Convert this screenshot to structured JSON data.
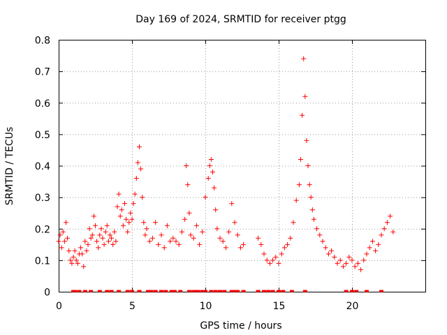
{
  "chart_data": {
    "type": "scatter",
    "title": "Day 169 of 2024, SRMTID for receiver ptgg",
    "xlabel": "GPS time / hours",
    "ylabel": "SRMTID / TECUs",
    "xlim": [
      0,
      25
    ],
    "ylim": [
      0,
      0.8
    ],
    "x_ticks": [
      0,
      5,
      10,
      15,
      20
    ],
    "x_tick_labels": [
      "0",
      "5",
      "10",
      "15",
      "20"
    ],
    "y_ticks": [
      0,
      0.1,
      0.2,
      0.3,
      0.4,
      0.5,
      0.6,
      0.7,
      0.8
    ],
    "y_tick_labels": [
      "0",
      "0.1",
      "0.2",
      "0.3",
      "0.4",
      "0.5",
      "0.6",
      "0.7",
      "0.8"
    ],
    "grid": true,
    "marker": "+",
    "color": "#ff0000",
    "series": [
      {
        "name": "SRMTID",
        "x": [
          0.0,
          0.1,
          0.2,
          0.3,
          0.4,
          0.5,
          0.6,
          0.7,
          0.8,
          0.9,
          1.0,
          1.1,
          1.2,
          1.3,
          1.4,
          1.5,
          1.6,
          1.7,
          1.8,
          1.9,
          2.0,
          2.1,
          2.2,
          2.3,
          2.4,
          2.5,
          2.6,
          2.7,
          2.8,
          2.9,
          3.0,
          3.1,
          3.2,
          3.3,
          3.4,
          3.5,
          3.6,
          3.7,
          3.8,
          3.9,
          4.0,
          4.1,
          4.2,
          4.3,
          4.4,
          4.5,
          4.6,
          4.7,
          4.8,
          4.9,
          5.0,
          5.1,
          5.2,
          5.3,
          5.4,
          5.5,
          5.6,
          5.7,
          5.8,
          5.9,
          6.0,
          6.2,
          6.4,
          6.6,
          6.8,
          7.0,
          7.2,
          7.4,
          7.6,
          7.8,
          8.0,
          8.2,
          8.4,
          8.6,
          8.7,
          8.8,
          8.9,
          9.0,
          9.2,
          9.4,
          9.6,
          9.8,
          10.0,
          10.2,
          10.3,
          10.4,
          10.5,
          10.6,
          10.7,
          10.8,
          11.0,
          11.2,
          11.4,
          11.6,
          11.8,
          12.0,
          12.2,
          12.4,
          12.6,
          13.6,
          13.8,
          14.0,
          14.2,
          14.4,
          14.6,
          14.8,
          15.0,
          15.2,
          15.4,
          15.6,
          15.8,
          16.0,
          16.2,
          16.4,
          16.5,
          16.6,
          16.7,
          16.8,
          16.9,
          17.0,
          17.1,
          17.2,
          17.3,
          17.4,
          17.6,
          17.8,
          18.0,
          18.2,
          18.4,
          18.6,
          18.8,
          19.0,
          19.2,
          19.4,
          19.6,
          19.8,
          20.0,
          20.2,
          20.4,
          20.6,
          20.8,
          21.0,
          21.2,
          21.4,
          21.6,
          21.8,
          22.0,
          22.2,
          22.4,
          22.6,
          22.8
        ],
        "y": [
          0.16,
          0.18,
          0.14,
          0.19,
          0.16,
          0.22,
          0.17,
          0.13,
          0.1,
          0.09,
          0.11,
          0.13,
          0.1,
          0.09,
          0.12,
          0.14,
          0.12,
          0.08,
          0.16,
          0.13,
          0.15,
          0.2,
          0.17,
          0.18,
          0.24,
          0.21,
          0.16,
          0.14,
          0.18,
          0.2,
          0.17,
          0.15,
          0.19,
          0.21,
          0.16,
          0.18,
          0.17,
          0.15,
          0.19,
          0.16,
          0.27,
          0.31,
          0.24,
          0.26,
          0.21,
          0.28,
          0.23,
          0.19,
          0.22,
          0.25,
          0.23,
          0.28,
          0.31,
          0.36,
          0.41,
          0.46,
          0.39,
          0.3,
          0.22,
          0.18,
          0.2,
          0.16,
          0.17,
          0.22,
          0.15,
          0.18,
          0.14,
          0.21,
          0.16,
          0.17,
          0.16,
          0.15,
          0.19,
          0.23,
          0.4,
          0.34,
          0.25,
          0.18,
          0.17,
          0.21,
          0.15,
          0.19,
          0.3,
          0.36,
          0.4,
          0.42,
          0.38,
          0.33,
          0.26,
          0.2,
          0.17,
          0.16,
          0.14,
          0.19,
          0.28,
          0.22,
          0.18,
          0.14,
          0.15,
          0.17,
          0.15,
          0.12,
          0.1,
          0.09,
          0.1,
          0.11,
          0.09,
          0.12,
          0.14,
          0.15,
          0.17,
          0.22,
          0.29,
          0.34,
          0.42,
          0.56,
          0.74,
          0.62,
          0.48,
          0.4,
          0.34,
          0.3,
          0.26,
          0.23,
          0.2,
          0.18,
          0.16,
          0.14,
          0.12,
          0.13,
          0.11,
          0.09,
          0.1,
          0.08,
          0.09,
          0.11,
          0.1,
          0.08,
          0.09,
          0.07,
          0.1,
          0.12,
          0.14,
          0.16,
          0.13,
          0.15,
          0.18,
          0.2,
          0.22,
          0.24,
          0.19
        ]
      }
    ],
    "zero_series": {
      "name": "zero values",
      "x": [
        1.0,
        1.1,
        1.4,
        1.8,
        2.2,
        2.8,
        3.3,
        3.6,
        4.1,
        4.7,
        5.0,
        5.5,
        6.1,
        6.3,
        6.6,
        7.0,
        7.3,
        7.7,
        7.9,
        8.3,
        8.9,
        9.2,
        9.4,
        9.5,
        9.8,
        10.0,
        10.4,
        10.7,
        11.0,
        11.3,
        11.8,
        12.0,
        12.2,
        12.6,
        13.6,
        14.0,
        14.3,
        14.6,
        15.0,
        15.3,
        15.9,
        16.8,
        19.6,
        20.0,
        20.3,
        21.0,
        22.0
      ]
    }
  }
}
